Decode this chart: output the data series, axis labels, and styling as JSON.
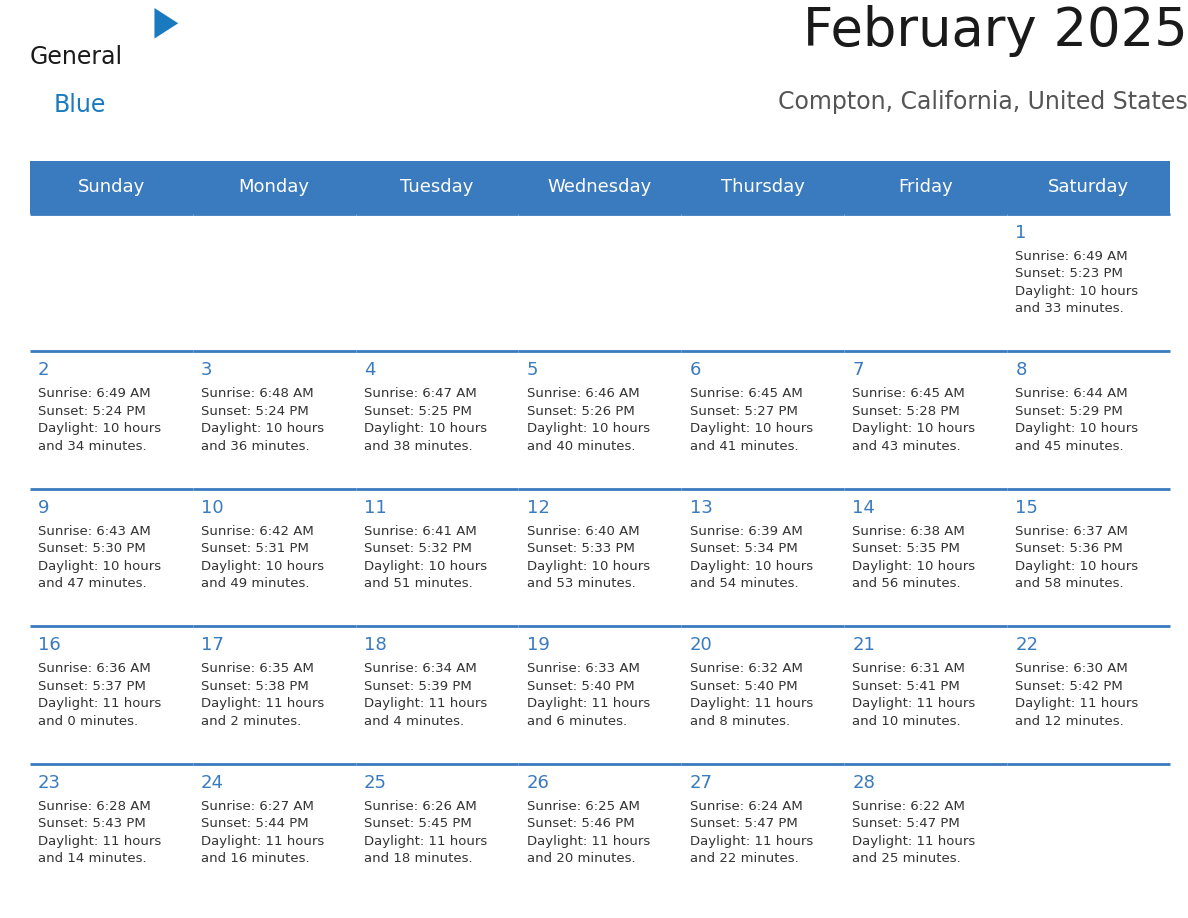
{
  "title": "February 2025",
  "subtitle": "Compton, California, United States",
  "header_color": "#3a7abf",
  "header_text_color": "#ffffff",
  "cell_bg_color": "#f0f0f0",
  "day_number_color": "#3a7abf",
  "text_color": "#333333",
  "line_color": "#3a7abf",
  "days_of_week": [
    "Sunday",
    "Monday",
    "Tuesday",
    "Wednesday",
    "Thursday",
    "Friday",
    "Saturday"
  ],
  "calendar": [
    [
      null,
      null,
      null,
      null,
      null,
      null,
      {
        "day": 1,
        "sunrise": "6:49 AM",
        "sunset": "5:23 PM",
        "daylight": "10 hours\nand 33 minutes."
      }
    ],
    [
      {
        "day": 2,
        "sunrise": "6:49 AM",
        "sunset": "5:24 PM",
        "daylight": "10 hours\nand 34 minutes."
      },
      {
        "day": 3,
        "sunrise": "6:48 AM",
        "sunset": "5:24 PM",
        "daylight": "10 hours\nand 36 minutes."
      },
      {
        "day": 4,
        "sunrise": "6:47 AM",
        "sunset": "5:25 PM",
        "daylight": "10 hours\nand 38 minutes."
      },
      {
        "day": 5,
        "sunrise": "6:46 AM",
        "sunset": "5:26 PM",
        "daylight": "10 hours\nand 40 minutes."
      },
      {
        "day": 6,
        "sunrise": "6:45 AM",
        "sunset": "5:27 PM",
        "daylight": "10 hours\nand 41 minutes."
      },
      {
        "day": 7,
        "sunrise": "6:45 AM",
        "sunset": "5:28 PM",
        "daylight": "10 hours\nand 43 minutes."
      },
      {
        "day": 8,
        "sunrise": "6:44 AM",
        "sunset": "5:29 PM",
        "daylight": "10 hours\nand 45 minutes."
      }
    ],
    [
      {
        "day": 9,
        "sunrise": "6:43 AM",
        "sunset": "5:30 PM",
        "daylight": "10 hours\nand 47 minutes."
      },
      {
        "day": 10,
        "sunrise": "6:42 AM",
        "sunset": "5:31 PM",
        "daylight": "10 hours\nand 49 minutes."
      },
      {
        "day": 11,
        "sunrise": "6:41 AM",
        "sunset": "5:32 PM",
        "daylight": "10 hours\nand 51 minutes."
      },
      {
        "day": 12,
        "sunrise": "6:40 AM",
        "sunset": "5:33 PM",
        "daylight": "10 hours\nand 53 minutes."
      },
      {
        "day": 13,
        "sunrise": "6:39 AM",
        "sunset": "5:34 PM",
        "daylight": "10 hours\nand 54 minutes."
      },
      {
        "day": 14,
        "sunrise": "6:38 AM",
        "sunset": "5:35 PM",
        "daylight": "10 hours\nand 56 minutes."
      },
      {
        "day": 15,
        "sunrise": "6:37 AM",
        "sunset": "5:36 PM",
        "daylight": "10 hours\nand 58 minutes."
      }
    ],
    [
      {
        "day": 16,
        "sunrise": "6:36 AM",
        "sunset": "5:37 PM",
        "daylight": "11 hours\nand 0 minutes."
      },
      {
        "day": 17,
        "sunrise": "6:35 AM",
        "sunset": "5:38 PM",
        "daylight": "11 hours\nand 2 minutes."
      },
      {
        "day": 18,
        "sunrise": "6:34 AM",
        "sunset": "5:39 PM",
        "daylight": "11 hours\nand 4 minutes."
      },
      {
        "day": 19,
        "sunrise": "6:33 AM",
        "sunset": "5:40 PM",
        "daylight": "11 hours\nand 6 minutes."
      },
      {
        "day": 20,
        "sunrise": "6:32 AM",
        "sunset": "5:40 PM",
        "daylight": "11 hours\nand 8 minutes."
      },
      {
        "day": 21,
        "sunrise": "6:31 AM",
        "sunset": "5:41 PM",
        "daylight": "11 hours\nand 10 minutes."
      },
      {
        "day": 22,
        "sunrise": "6:30 AM",
        "sunset": "5:42 PM",
        "daylight": "11 hours\nand 12 minutes."
      }
    ],
    [
      {
        "day": 23,
        "sunrise": "6:28 AM",
        "sunset": "5:43 PM",
        "daylight": "11 hours\nand 14 minutes."
      },
      {
        "day": 24,
        "sunrise": "6:27 AM",
        "sunset": "5:44 PM",
        "daylight": "11 hours\nand 16 minutes."
      },
      {
        "day": 25,
        "sunrise": "6:26 AM",
        "sunset": "5:45 PM",
        "daylight": "11 hours\nand 18 minutes."
      },
      {
        "day": 26,
        "sunrise": "6:25 AM",
        "sunset": "5:46 PM",
        "daylight": "11 hours\nand 20 minutes."
      },
      {
        "day": 27,
        "sunrise": "6:24 AM",
        "sunset": "5:47 PM",
        "daylight": "11 hours\nand 22 minutes."
      },
      {
        "day": 28,
        "sunrise": "6:22 AM",
        "sunset": "5:47 PM",
        "daylight": "11 hours\nand 25 minutes."
      },
      null
    ]
  ],
  "logo_color_general": "#1a1a1a",
  "logo_color_blue": "#1a7abf",
  "logo_triangle_color": "#1a7abf",
  "title_fontsize": 38,
  "subtitle_fontsize": 17,
  "header_fontsize": 13,
  "day_number_fontsize": 13,
  "cell_text_fontsize": 9.5
}
